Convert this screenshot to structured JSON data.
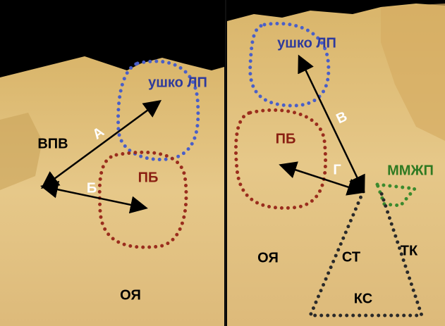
{
  "left_panel": {
    "labels": {
      "appendage": "ушко ЛП",
      "svc": "ВПВ",
      "arrow_a": "А",
      "arrow_b": "Б",
      "pb": "ПБ",
      "fo": "ОЯ"
    }
  },
  "right_panel": {
    "labels": {
      "appendage": "ушко ЛП",
      "pb": "ПБ",
      "arrow_v": "В",
      "arrow_g": "Г",
      "mmzhp": "ММЖП",
      "fo": "ОЯ",
      "st": "СТ",
      "tk": "ТК",
      "ks": "КС"
    }
  }
}
